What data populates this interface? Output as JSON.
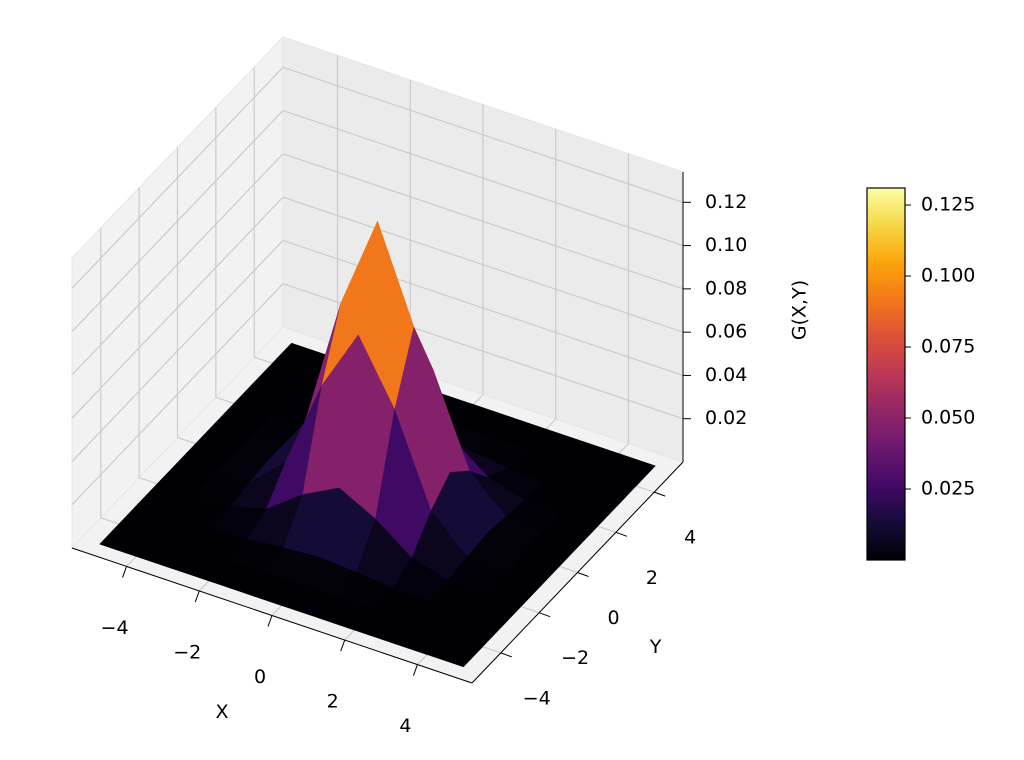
{
  "chart_data": {
    "type": "surface",
    "x_label": "X",
    "y_label": "Y",
    "z_label": "G(X,Y)",
    "colormap": "inferno",
    "x": [
      -5,
      -4,
      -3,
      -2,
      -1,
      0,
      1,
      2,
      3,
      4,
      5
    ],
    "y": [
      -5,
      -4,
      -3,
      -2,
      -1,
      0,
      1,
      2,
      3,
      4,
      5
    ],
    "z": [
      [
        0,
        0,
        0,
        0,
        0,
        0,
        0,
        0,
        0,
        0,
        0
      ],
      [
        0,
        0,
        0,
        0,
        0.0001,
        0.0002,
        0.0001,
        0,
        0,
        0,
        0
      ],
      [
        0,
        0,
        0.0001,
        0.0007,
        0.0024,
        0.0036,
        0.0024,
        0.0007,
        0.0001,
        0,
        0
      ],
      [
        0,
        0,
        0.0007,
        0.0053,
        0.0177,
        0.0264,
        0.0177,
        0.0053,
        0.0007,
        0,
        0
      ],
      [
        0,
        0.0001,
        0.0024,
        0.0177,
        0.0589,
        0.0878,
        0.0589,
        0.0177,
        0.0024,
        0.0001,
        0
      ],
      [
        0,
        0.0002,
        0.0036,
        0.0264,
        0.0878,
        0.131,
        0.0878,
        0.0264,
        0.0036,
        0.0002,
        0
      ],
      [
        0,
        0.0001,
        0.0024,
        0.0177,
        0.0589,
        0.0878,
        0.0589,
        0.0177,
        0.0024,
        0.0001,
        0
      ],
      [
        0,
        0,
        0.0007,
        0.0053,
        0.0177,
        0.0264,
        0.0177,
        0.0053,
        0.0007,
        0,
        0
      ],
      [
        0,
        0,
        0.0001,
        0.0007,
        0.0024,
        0.0036,
        0.0024,
        0.0007,
        0.0001,
        0,
        0
      ],
      [
        0,
        0,
        0,
        0,
        0.0001,
        0.0002,
        0.0001,
        0,
        0,
        0,
        0
      ],
      [
        0,
        0,
        0,
        0,
        0,
        0,
        0,
        0,
        0,
        0,
        0
      ]
    ],
    "xlim": [
      -5.5,
      5.5
    ],
    "ylim": [
      -5.5,
      5.5
    ],
    "zlim": [
      0,
      0.134
    ],
    "xticks": [
      {
        "value": -4,
        "label": "−4"
      },
      {
        "value": -2,
        "label": "−2"
      },
      0,
      2,
      4
    ],
    "yticks": [
      {
        "value": -4,
        "label": "−4"
      },
      {
        "value": -2,
        "label": "−2"
      },
      0,
      2,
      4
    ],
    "zticks": [
      0.02,
      0.04,
      0.06,
      0.08,
      {
        "value": 0.1,
        "label": "0.10"
      },
      0.12
    ],
    "clim": [
      0,
      0.131
    ],
    "colorbar_ticks": [
      0.025,
      {
        "value": 0.05,
        "label": "0.050"
      },
      0.075,
      {
        "value": 0.1,
        "label": "0.100"
      },
      0.125
    ],
    "grid": true
  }
}
